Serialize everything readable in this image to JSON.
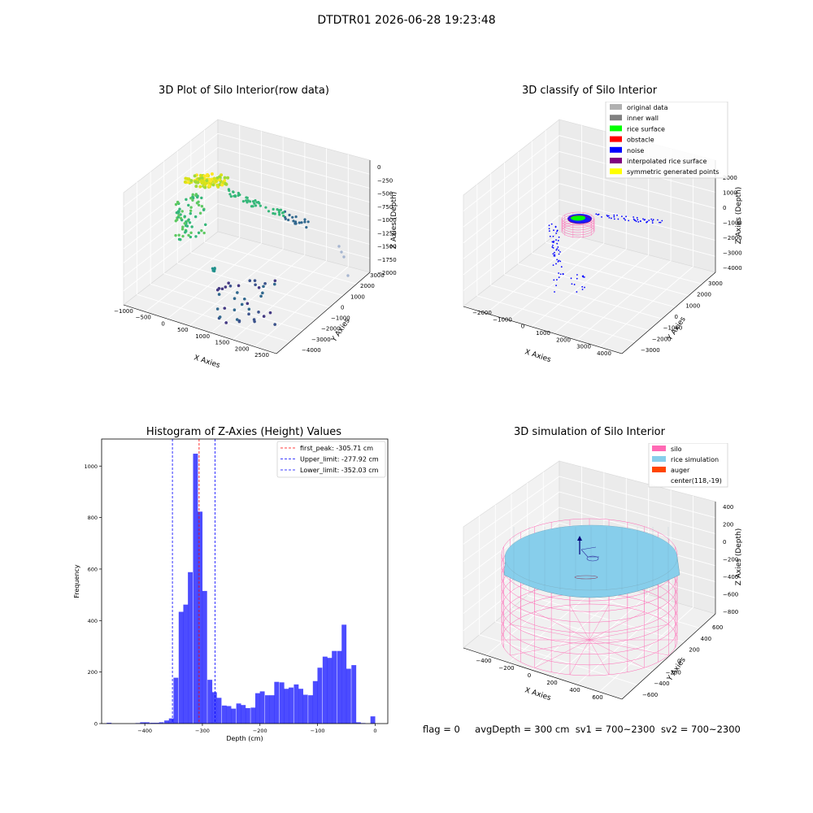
{
  "figure": {
    "suptitle": "DTDTR01 2026-06-28 19:23:48",
    "status": {
      "flag": "flag = 0",
      "avg_depth": "avgDepth = 300 cm",
      "sv1": "sv1 = 700~2300",
      "sv2": "sv2 = 700~2300"
    }
  },
  "colors": {
    "hist_bar": "#0000ff",
    "first_peak": "#ff0000",
    "limit": "#0000ff",
    "silo": "#ff69b4",
    "rice_simulation": "#87ceeb",
    "auger": "#ff4500",
    "original_data": "#b0b0b0",
    "inner_wall": "#808080",
    "rice_surface": "#00ff00",
    "obstacle": "#ff0000",
    "noise": "#0000ff",
    "interpolated_rice_surface": "#800080",
    "symmetric_generated_points": "#ffff00"
  },
  "chart_data": [
    {
      "type": "scatter",
      "title": "3D Plot of Silo Interior(row data)",
      "xlabel": "X Axies",
      "ylabel": "Y Axies",
      "zlabel": "Z Axies (Depth)",
      "xticks": [
        "−1000",
        "−500",
        "0",
        "500",
        "1000",
        "1500",
        "2000",
        "2500"
      ],
      "yticks": [
        "−4000",
        "−3000",
        "−2000",
        "−1000",
        "0",
        "1000",
        "2000",
        "3000"
      ],
      "zticks": [
        "0",
        "−250",
        "−500",
        "−750",
        "−1000",
        "−1250",
        "−1500",
        "−1750",
        "−2000"
      ],
      "xlim": [
        -1000,
        2600
      ],
      "ylim": [
        -4000,
        3600
      ],
      "zlim": [
        -2100,
        100
      ]
    },
    {
      "type": "scatter",
      "title": "3D classify of Silo Interior",
      "xlabel": "X Axies",
      "ylabel": "Y Axies",
      "zlabel": "Z Axies (Depth)",
      "xticks": [
        "−2000",
        "−1000",
        "0",
        "1000",
        "2000",
        "3000",
        "4000"
      ],
      "yticks": [
        "−3000",
        "−2000",
        "−1000",
        "0",
        "1000",
        "2000",
        "3000"
      ],
      "zticks": [
        "−4000",
        "−3000",
        "−2000",
        "−1000",
        "0",
        "1000",
        "2000"
      ],
      "legend": [
        "original data",
        "inner wall",
        "rice surface",
        "obstacle",
        "noise",
        "interpolated rice surface",
        "symmetric generated points"
      ],
      "legend_position": "top-right"
    },
    {
      "type": "bar",
      "title": "Histogram of Z-Axies (Height) Values",
      "xlabel": "Depth (cm)",
      "ylabel": "Frequency",
      "xlim": [
        -475,
        22
      ],
      "ylim": [
        0,
        1105
      ],
      "xticks": [
        -400,
        -300,
        -200,
        -100,
        0
      ],
      "xtick_labels": [
        "−400",
        "−300",
        "−200",
        "−100",
        "0"
      ],
      "yticks": [
        0,
        200,
        400,
        600,
        800,
        1000
      ],
      "bin_width": 8.33,
      "bins": [
        {
          "x": -462,
          "v": 3
        },
        {
          "x": -412,
          "v": 2
        },
        {
          "x": -404,
          "v": 5
        },
        {
          "x": -396,
          "v": 5
        },
        {
          "x": -387,
          "v": 3
        },
        {
          "x": -379,
          "v": 3
        },
        {
          "x": -371,
          "v": 5
        },
        {
          "x": -362,
          "v": 12
        },
        {
          "x": -354,
          "v": 20
        },
        {
          "x": -346,
          "v": 178
        },
        {
          "x": -337,
          "v": 434
        },
        {
          "x": -329,
          "v": 462
        },
        {
          "x": -321,
          "v": 588
        },
        {
          "x": -312,
          "v": 1048
        },
        {
          "x": -304,
          "v": 823
        },
        {
          "x": -296,
          "v": 515
        },
        {
          "x": -287,
          "v": 170
        },
        {
          "x": -279,
          "v": 122
        },
        {
          "x": -271,
          "v": 100
        },
        {
          "x": -262,
          "v": 70
        },
        {
          "x": -254,
          "v": 68
        },
        {
          "x": -246,
          "v": 58
        },
        {
          "x": -237,
          "v": 78
        },
        {
          "x": -229,
          "v": 72
        },
        {
          "x": -221,
          "v": 60
        },
        {
          "x": -212,
          "v": 62
        },
        {
          "x": -204,
          "v": 118
        },
        {
          "x": -196,
          "v": 125
        },
        {
          "x": -187,
          "v": 110
        },
        {
          "x": -179,
          "v": 110
        },
        {
          "x": -171,
          "v": 162
        },
        {
          "x": -162,
          "v": 160
        },
        {
          "x": -154,
          "v": 135
        },
        {
          "x": -146,
          "v": 140
        },
        {
          "x": -137,
          "v": 152
        },
        {
          "x": -129,
          "v": 135
        },
        {
          "x": -121,
          "v": 112
        },
        {
          "x": -112,
          "v": 110
        },
        {
          "x": -104,
          "v": 165
        },
        {
          "x": -96,
          "v": 217
        },
        {
          "x": -87,
          "v": 260
        },
        {
          "x": -79,
          "v": 255
        },
        {
          "x": -71,
          "v": 282
        },
        {
          "x": -62,
          "v": 282
        },
        {
          "x": -54,
          "v": 384
        },
        {
          "x": -46,
          "v": 213
        },
        {
          "x": -37,
          "v": 227
        },
        {
          "x": -29,
          "v": 5
        },
        {
          "x": -21,
          "v": 2
        },
        {
          "x": -12,
          "v": 0
        },
        {
          "x": -4,
          "v": 28
        }
      ],
      "vlines": [
        {
          "name": "first_peak: -305.71 cm",
          "x": -305.71
        },
        {
          "name": "Upper_limit: -277.92 cm",
          "x": -277.92
        },
        {
          "name": "Lower_limit: -352.03 cm",
          "x": -352.03
        }
      ],
      "legend_position": "top-right"
    },
    {
      "type": "scatter",
      "title": "3D simulation of Silo Interior",
      "xlabel": "X Axies",
      "ylabel": "Y Axies",
      "zlabel": "Z Axies (Depth)",
      "xticks": [
        "−400",
        "−200",
        "0",
        "200",
        "400",
        "600"
      ],
      "yticks": [
        "−600",
        "−400",
        "−200",
        "0",
        "200",
        "400",
        "600"
      ],
      "zticks": [
        "400",
        "200",
        "0",
        "−200",
        "−400",
        "−600",
        "−800"
      ],
      "legend": [
        "silo",
        "rice simulation",
        "auger",
        "center(118,-19)"
      ],
      "legend_position": "top-right"
    }
  ]
}
